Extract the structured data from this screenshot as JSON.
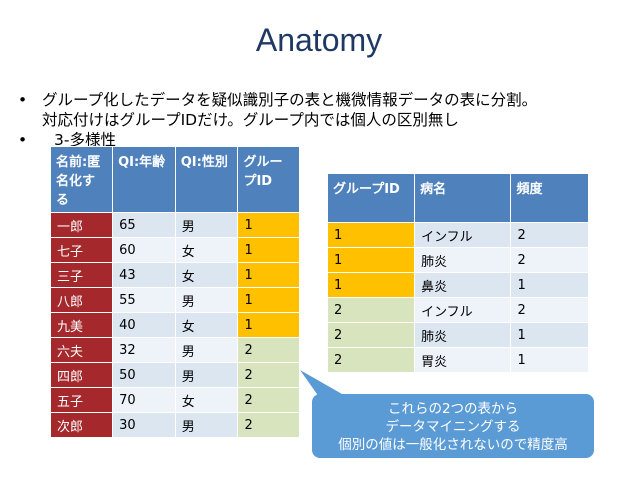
{
  "title": "Anatomy",
  "bullets": [
    {
      "text": "グループ化したデータを疑似識別子の表と機微情報データの表に分割。",
      "continuation": "対応付けはグループIDだけ。グループ内では個人の区別無し"
    },
    {
      "text": "3-多様性"
    }
  ],
  "table_qi": {
    "headers": [
      "名前:匿名化する",
      "QI:年齢",
      "QI:性別",
      "グループID"
    ],
    "rows": [
      [
        "一郎",
        "65",
        "男",
        "1"
      ],
      [
        "七子",
        "60",
        "女",
        "1"
      ],
      [
        "三子",
        "43",
        "女",
        "1"
      ],
      [
        "八郎",
        "55",
        "男",
        "1"
      ],
      [
        "九美",
        "40",
        "女",
        "1"
      ],
      [
        "六夫",
        "32",
        "男",
        "2"
      ],
      [
        "四郎",
        "50",
        "男",
        "2"
      ],
      [
        "五子",
        "70",
        "女",
        "2"
      ],
      [
        "次郎",
        "30",
        "男",
        "2"
      ]
    ]
  },
  "table_sensitive": {
    "headers": [
      "グループID",
      "病名",
      "頻度"
    ],
    "rows": [
      [
        "1",
        "インフル",
        "2"
      ],
      [
        "1",
        "肺炎",
        "2"
      ],
      [
        "1",
        "鼻炎",
        "1"
      ],
      [
        "2",
        "インフル",
        "2"
      ],
      [
        "2",
        "肺炎",
        "1"
      ],
      [
        "2",
        "胃炎",
        "1"
      ]
    ]
  },
  "callout": {
    "line1": "これらの2つの表から",
    "line2": "データマイニングする",
    "line3": "個別の値は一般化されないので精度高"
  },
  "colors": {
    "header": "#4F81BD",
    "name_cell": "#A4282C",
    "group1": "#FFC000",
    "group2": "#D7E4BD",
    "callout": "#5B9BD5"
  }
}
